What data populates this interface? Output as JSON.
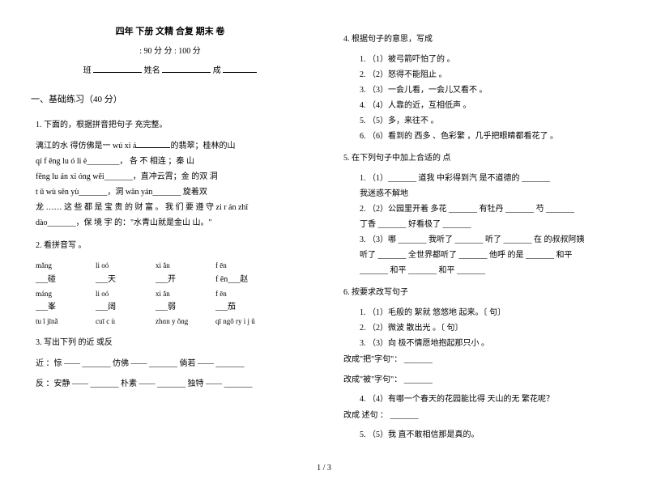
{
  "header": {
    "title": "四年 下册 文精  合复 期末 卷",
    "time_score": ": 90 分          分 : 100 分",
    "class_lbl": "班",
    "name_lbl": "姓名",
    "score_lbl": "成"
  },
  "section1": "一、基础练习（40 分）",
  "q1": {
    "head": "1.  下面的，根据拼音把句子 充完整。",
    "l1a": "漓江的水 得仿佛是一         wú   xi á",
    "l1b": "的翡翠；桂林的山",
    "l2": "qí    f  ēng    lu  ó      li  è________，  各     不 相连 ；秦        山",
    "l3": "fēng   lu  án   xi  óng   wěi_______，直冲云霄；金 的双 洞",
    "l4": "t  ū   wù   sēn   yù_______，洞    wān       yán_______  旋着双",
    "l5": "龙 …… 这 些 都 是 宝 贵 的 财 富 。 我 们 要 遵 守 zi  r  án  zhī",
    "l6": "dào_______，保 境 宇 的：\"水青山就是金山 山。\""
  },
  "q2": {
    "head": "2.  看拼音写    。",
    "r1": {
      "c1": "mǎng",
      "c2": "li oó",
      "c3": "xi ǎn",
      "c4": "f  ēn"
    },
    "r1b": {
      "c1": "___碰",
      "c2": "___天",
      "c3": "___开",
      "c4": "f  ēn___赵"
    },
    "r2": {
      "c1": "máng",
      "c2": "li oó",
      "c3": "xi ǎn",
      "c4": "f  ēn"
    },
    "r2b": {
      "c1": "___峯",
      "c2": "___阔",
      "c3": "___弱",
      "c4": "___茄"
    },
    "r3": {
      "c1": "tu ǐ jīnǎ",
      "c2": "cuī c ù",
      "c3": "zhɑn y ǒng",
      "c4": "qī ngǒ ry ì j  ǔ"
    }
  },
  "q3": {
    "head": "3.  写出下列  的近 或反",
    "l1": "近 ：惊 ——  _______  仿佛 ——  _______  倘若 —— _______",
    "l2": "反 ：安静 ——  _______  朴素 ——  _______  独特 —— _______"
  },
  "q4": {
    "head": "4.  根据句子的意思，写成",
    "s1": "1. （1）被弓箭吓怕了的 。",
    "s2": "2. （2）怒得不能阻止 。",
    "s3": "3. （3）一会儿看，一会儿又看不 。",
    "s4": "4. （4）人靠的近，互相低声  。",
    "s5": "5. （5）多，来往不 。",
    "s6": "6. （6）看到的 西多 、色彩繁 ，几乎把眼睛都看花了 。"
  },
  "q5": {
    "head": "5.  在下列句子中加上合适的 点",
    "s1a": "1. （1）_______ 道我 中彩得到汽 是不道德的   _______",
    "s1b": "我迷惑不解地",
    "s2a": "2. （2）公园里开着 多花 _______ 有牡丹 _______ 芍 _______",
    "s2b": "丁香 _______ 好看极了 _______",
    "s3a": "3. （3）哪 _______ 我听了 _______  听了 _______ 在 的叔叔阿姨",
    "s3b": "听了 _______ 全世界都听了 _______ 他呼 的是 _______ 和平",
    "s3c": "_______ 和平 _______ 和平 _______"
  },
  "q6": {
    "head": "6.  按要求改写句子",
    "s1": "1. （1）毛般的 絮就  悠悠地 起来。〔 句〕",
    "s2": "2. （2）微波 散出光 。〔 句〕",
    "s3": "3. （3）向 极不情愿地抱起那只小 。",
    "ba": "改成\"把\"字句\"：  _______",
    "bei": "改成\"被\"字句\"：  _______",
    "s4": "4. （4）有哪一个春天的花园能比得  天山的无 繁花呢？",
    "shu": "改成  述句 ：  _______",
    "s5": "5. （5）我 直不敢相信那是真的。"
  },
  "footer": "1 / 3"
}
